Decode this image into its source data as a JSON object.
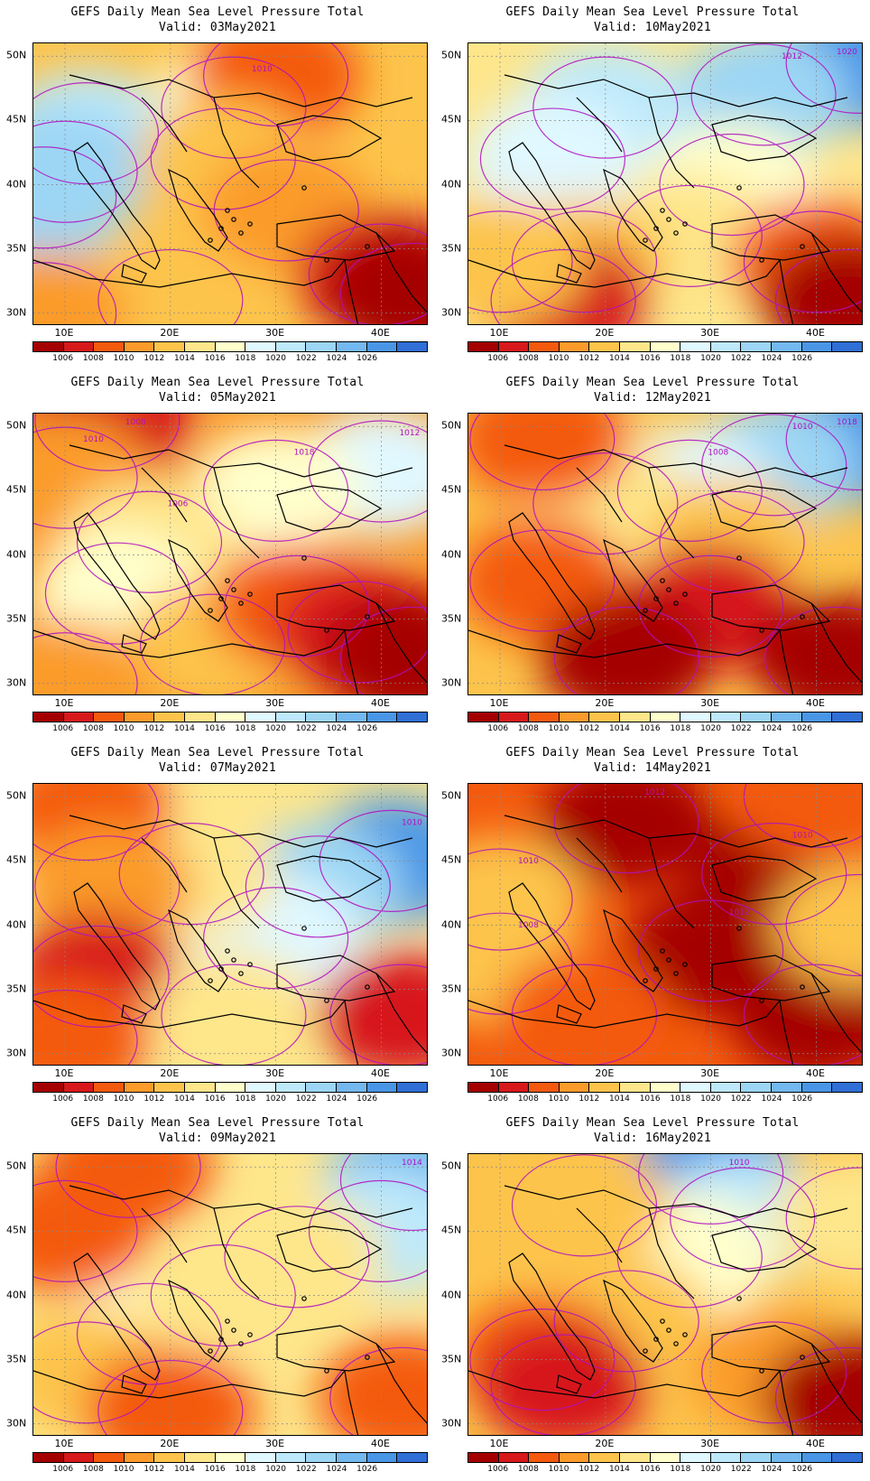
{
  "figure": {
    "palette": [
      "#a50000",
      "#d7191c",
      "#f45a0e",
      "#fb9b2b",
      "#fdc44c",
      "#fee68b",
      "#ffffcc",
      "#e0f8ff",
      "#bde9fb",
      "#9cd6f4",
      "#73b8ee",
      "#4a96e6",
      "#2f6fd6"
    ],
    "contour_color": "#b010c0",
    "colorbar_labels": [
      "1006",
      "1008",
      "1010",
      "1012",
      "1014",
      "1016",
      "1018",
      "1020",
      "1022",
      "1024",
      "1026"
    ],
    "lat_labels": [
      "50N",
      "45N",
      "40N",
      "35N",
      "30N"
    ],
    "lon_labels": [
      "10E",
      "20E",
      "30E",
      "40E"
    ]
  },
  "panels": [
    {
      "title": "GEFS Daily Mean Sea Level Pressure Total",
      "valid": "Valid: 03May2021",
      "contour_labels": [
        "1010"
      ],
      "features": [
        {
          "lat": 46,
          "lon": 26,
          "level": 6
        },
        {
          "lat": 44,
          "lon": 12,
          "level": 8
        },
        {
          "lat": 41,
          "lon": 10,
          "level": 9
        },
        {
          "lat": 39,
          "lon": 8,
          "level": 9
        },
        {
          "lat": 48.5,
          "lon": 30,
          "level": 2
        },
        {
          "lat": 42,
          "lon": 25,
          "level": 4
        },
        {
          "lat": 38,
          "lon": 31,
          "level": 3
        },
        {
          "lat": 33,
          "lon": 40,
          "level": 1
        },
        {
          "lat": 31.5,
          "lon": 43,
          "level": 0
        },
        {
          "lat": 31,
          "lon": 20,
          "level": 4
        },
        {
          "lat": 30,
          "lon": 8,
          "level": 3
        }
      ]
    },
    {
      "title": "GEFS Daily Mean Sea Level Pressure Total",
      "valid": "Valid: 10May2021",
      "contour_labels": [
        "1020",
        "1012"
      ],
      "features": [
        {
          "lat": 49.5,
          "lon": 44,
          "level": 11
        },
        {
          "lat": 47,
          "lon": 35,
          "level": 9
        },
        {
          "lat": 46,
          "lon": 20,
          "level": 8
        },
        {
          "lat": 42,
          "lon": 15,
          "level": 7
        },
        {
          "lat": 40,
          "lon": 32,
          "level": 6
        },
        {
          "lat": 36,
          "lon": 28,
          "level": 5
        },
        {
          "lat": 34,
          "lon": 18,
          "level": 4
        },
        {
          "lat": 31,
          "lon": 16,
          "level": 1
        },
        {
          "lat": 34,
          "lon": 40,
          "level": 2
        },
        {
          "lat": 31,
          "lon": 43,
          "level": 0
        },
        {
          "lat": 34,
          "lon": 10,
          "level": 4
        }
      ]
    },
    {
      "title": "GEFS Daily Mean Sea Level Pressure Total",
      "valid": "Valid: 05May2021",
      "contour_labels": [
        "1008",
        "1010",
        "1012",
        "1018",
        "1006"
      ],
      "features": [
        {
          "lat": 50.5,
          "lon": 14,
          "level": 1
        },
        {
          "lat": 46,
          "lon": 10,
          "level": 3
        },
        {
          "lat": 46.5,
          "lon": 40,
          "level": 7
        },
        {
          "lat": 45,
          "lon": 30,
          "level": 6
        },
        {
          "lat": 41,
          "lon": 18,
          "level": 5
        },
        {
          "lat": 37,
          "lon": 15,
          "level": 6
        },
        {
          "lat": 33,
          "lon": 24,
          "level": 4
        },
        {
          "lat": 36,
          "lon": 32,
          "level": 2
        },
        {
          "lat": 34,
          "lon": 38,
          "level": 1
        },
        {
          "lat": 32,
          "lon": 43,
          "level": 0
        },
        {
          "lat": 30,
          "lon": 10,
          "level": 3
        }
      ]
    },
    {
      "title": "GEFS Daily Mean Sea Level Pressure Total",
      "valid": "Valid: 12May2021",
      "contour_labels": [
        "1018",
        "1010",
        "1008"
      ],
      "features": [
        {
          "lat": 49,
          "lon": 44,
          "level": 11
        },
        {
          "lat": 47,
          "lon": 36,
          "level": 9
        },
        {
          "lat": 45,
          "lon": 28,
          "level": 7
        },
        {
          "lat": 44,
          "lon": 20,
          "level": 5
        },
        {
          "lat": 49,
          "lon": 14,
          "level": 2
        },
        {
          "lat": 41,
          "lon": 32,
          "level": 4
        },
        {
          "lat": 38,
          "lon": 14,
          "level": 2
        },
        {
          "lat": 36,
          "lon": 30,
          "level": 1
        },
        {
          "lat": 32,
          "lon": 22,
          "level": 0
        },
        {
          "lat": 32,
          "lon": 42,
          "level": 0
        }
      ]
    },
    {
      "title": "GEFS Daily Mean Sea Level Pressure Total",
      "valid": "Valid: 07May2021",
      "contour_labels": [
        "1010"
      ],
      "features": [
        {
          "lat": 45,
          "lon": 41,
          "level": 11
        },
        {
          "lat": 43,
          "lon": 34,
          "level": 9
        },
        {
          "lat": 39,
          "lon": 30,
          "level": 7
        },
        {
          "lat": 44,
          "lon": 22,
          "level": 5
        },
        {
          "lat": 49,
          "lon": 12,
          "level": 2
        },
        {
          "lat": 43,
          "lon": 14,
          "level": 3
        },
        {
          "lat": 36,
          "lon": 13,
          "level": 1
        },
        {
          "lat": 33,
          "lon": 26,
          "level": 5
        },
        {
          "lat": 31,
          "lon": 10,
          "level": 2
        },
        {
          "lat": 33,
          "lon": 42,
          "level": 1
        }
      ]
    },
    {
      "title": "GEFS Daily Mean Sea Level Pressure Total",
      "valid": "Valid: 14May2021",
      "contour_labels": [
        "1012",
        "1010",
        "1012",
        "1010",
        "1008"
      ],
      "features": [
        {
          "lat": 48,
          "lon": 22,
          "level": 0
        },
        {
          "lat": 44,
          "lon": 36,
          "level": 0
        },
        {
          "lat": 38,
          "lon": 30,
          "level": 0
        },
        {
          "lat": 42,
          "lon": 10,
          "level": 4
        },
        {
          "lat": 37,
          "lon": 10,
          "level": 4
        },
        {
          "lat": 33,
          "lon": 18,
          "level": 2
        },
        {
          "lat": 50,
          "lon": 40,
          "level": 2
        },
        {
          "lat": 33,
          "lon": 40,
          "level": 0
        },
        {
          "lat": 40,
          "lon": 44,
          "level": 4
        }
      ]
    },
    {
      "title": "GEFS Daily Mean Sea Level Pressure Total",
      "valid": "Valid: 09May2021",
      "contour_labels": [
        "1014"
      ],
      "features": [
        {
          "lat": 49,
          "lon": 43,
          "level": 10
        },
        {
          "lat": 45,
          "lon": 40,
          "level": 8
        },
        {
          "lat": 43,
          "lon": 32,
          "level": 5
        },
        {
          "lat": 37,
          "lon": 18,
          "level": 6
        },
        {
          "lat": 40,
          "lon": 25,
          "level": 5
        },
        {
          "lat": 50,
          "lon": 16,
          "level": 2
        },
        {
          "lat": 45,
          "lon": 10,
          "level": 2
        },
        {
          "lat": 34,
          "lon": 12,
          "level": 4
        },
        {
          "lat": 31,
          "lon": 20,
          "level": 2
        },
        {
          "lat": 32,
          "lon": 42,
          "level": 2
        }
      ]
    },
    {
      "title": "GEFS Daily Mean Sea Level Pressure Total",
      "valid": "Valid: 16May2021",
      "contour_labels": [
        "1010"
      ],
      "features": [
        {
          "lat": 49.5,
          "lon": 30,
          "level": 11
        },
        {
          "lat": 46,
          "lon": 33,
          "level": 8
        },
        {
          "lat": 43,
          "lon": 28,
          "level": 6
        },
        {
          "lat": 47,
          "lon": 18,
          "level": 4
        },
        {
          "lat": 38,
          "lon": 22,
          "level": 4
        },
        {
          "lat": 35,
          "lon": 14,
          "level": 2
        },
        {
          "lat": 33,
          "lon": 16,
          "level": 1
        },
        {
          "lat": 34,
          "lon": 36,
          "level": 3
        },
        {
          "lat": 32,
          "lon": 43,
          "level": 0
        },
        {
          "lat": 46,
          "lon": 44,
          "level": 5
        }
      ]
    }
  ]
}
